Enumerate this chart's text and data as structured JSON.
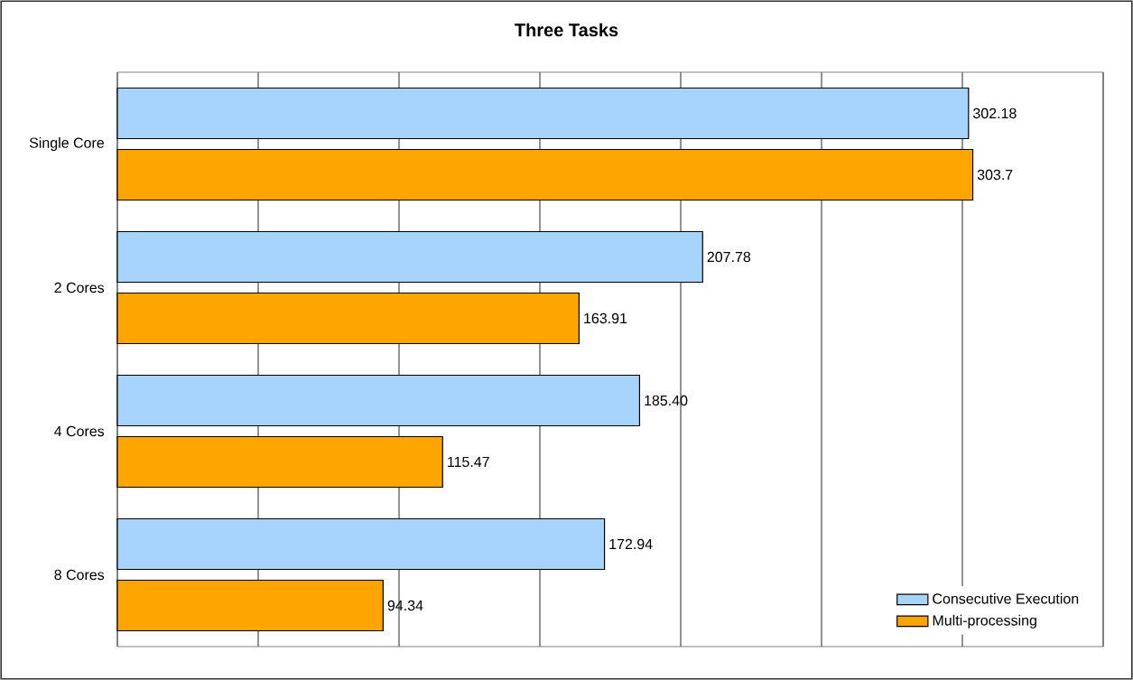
{
  "chart_data": {
    "type": "bar",
    "orientation": "horizontal",
    "title": "Three Tasks",
    "categories": [
      "Single Core",
      "2 Cores",
      "4 Cores",
      "8 Cores"
    ],
    "series": [
      {
        "name": "Consecutive Execution",
        "color": "#a6d4fc",
        "values": [
          302.18,
          207.78,
          185.4,
          172.94
        ],
        "value_labels": [
          "302.18",
          "207.78",
          "185.40",
          "172.94"
        ]
      },
      {
        "name": "Multi-processing",
        "color": "#ffa500",
        "values": [
          303.7,
          163.91,
          115.47,
          94.34
        ],
        "value_labels": [
          "303.7",
          "163.91",
          "115.47",
          "94.34"
        ]
      }
    ],
    "xlim": [
      0,
      350
    ],
    "xticks": [
      {
        "value": 0,
        "label": null
      },
      {
        "value": 50,
        "label": null
      },
      {
        "value": 100,
        "label": null
      },
      {
        "value": 150,
        "label": null
      },
      {
        "value": 200,
        "label": null
      },
      {
        "value": 250,
        "label": null
      },
      {
        "value": 300,
        "label": null
      },
      {
        "value": 350,
        "label": null
      }
    ],
    "tick_labels": "y",
    "grid": "x",
    "legend": "bottom right"
  }
}
